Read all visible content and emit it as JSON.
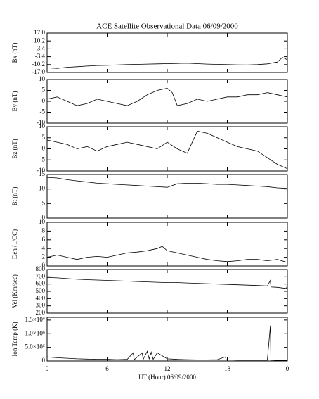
{
  "chart_data": [
    {
      "type": "line",
      "title": "ACE Satellite Observational Data   06/09/2000",
      "ylabel": "Bx (nT)",
      "x": [
        0,
        1,
        2,
        3,
        4,
        5,
        6,
        7,
        8,
        9,
        10,
        11,
        12,
        13,
        14,
        15,
        16,
        17,
        18,
        19,
        20,
        21,
        22,
        23,
        23.5,
        24
      ],
      "values": [
        -13,
        -13.5,
        -12.5,
        -12,
        -11.5,
        -11,
        -10.8,
        -10.5,
        -10.2,
        -10,
        -9.8,
        -9.6,
        -9.4,
        -9.2,
        -9,
        -9.4,
        -9.8,
        -10,
        -10.2,
        -10.4,
        -10.5,
        -10.2,
        -9.6,
        -8,
        -4,
        -6
      ],
      "xlim": [
        0,
        24
      ],
      "ylim": [
        -17,
        17
      ],
      "yticks": [
        {
          "value": -17,
          "label": "-17.0"
        },
        -10.2,
        -3.4,
        3.4,
        10.2,
        {
          "value": 17,
          "label": "17.0"
        }
      ]
    },
    {
      "type": "line",
      "ylabel": "By (nT)",
      "x": [
        0,
        1,
        2,
        3,
        4,
        5,
        6,
        7,
        8,
        9,
        10,
        11,
        12,
        12.5,
        13,
        14,
        15,
        16,
        17,
        18,
        19,
        20,
        21,
        22,
        23,
        24
      ],
      "values": [
        1,
        2,
        0,
        -2,
        -1,
        1,
        0,
        -1,
        -2,
        0,
        3,
        5,
        6,
        4,
        -2,
        -1,
        1,
        0,
        1,
        2,
        2,
        3,
        3,
        4,
        3,
        2
      ],
      "xlim": [
        0,
        24
      ],
      "ylim": [
        -10,
        10
      ],
      "yticks": [
        -10,
        -5,
        0,
        5,
        10
      ]
    },
    {
      "type": "line",
      "ylabel": "Bz (nT)",
      "x": [
        0,
        1,
        2,
        3,
        4,
        5,
        6,
        7,
        8,
        9,
        10,
        11,
        12,
        13,
        14,
        14.5,
        15,
        16,
        17,
        18,
        19,
        20,
        21,
        22,
        23,
        24
      ],
      "values": [
        4,
        3,
        2,
        0,
        1,
        -1,
        1,
        2,
        3,
        2,
        1,
        0,
        3,
        0,
        -2,
        3,
        8,
        7,
        5,
        3,
        1,
        0,
        -1,
        -4,
        -7,
        -9
      ],
      "xlim": [
        0,
        24
      ],
      "ylim": [
        -10,
        10
      ],
      "yticks": [
        -10,
        -5,
        0,
        5,
        10
      ]
    },
    {
      "type": "line",
      "ylabel": "Bt (nT)",
      "x": [
        0,
        1,
        2,
        3,
        4,
        5,
        6,
        7,
        8,
        9,
        10,
        11,
        12,
        13,
        14,
        15,
        16,
        17,
        18,
        19,
        20,
        21,
        22,
        23,
        24
      ],
      "values": [
        14,
        13.8,
        13.2,
        12.8,
        12.4,
        12,
        11.8,
        11.6,
        11.4,
        11.2,
        11,
        10.8,
        10.6,
        11.8,
        12,
        12,
        11.8,
        11.6,
        11.6,
        11.4,
        11.2,
        11,
        10.8,
        10.4,
        10.2
      ],
      "xlim": [
        0,
        24
      ],
      "ylim": [
        0,
        15
      ],
      "yticks": [
        0,
        5,
        10,
        15
      ]
    },
    {
      "type": "line",
      "ylabel": "Den (1/CC)",
      "x": [
        0,
        1,
        2,
        3,
        4,
        5,
        6,
        7,
        8,
        9,
        10,
        11,
        11.5,
        12,
        13,
        14,
        15,
        16,
        17,
        18,
        19,
        20,
        21,
        22,
        23,
        24
      ],
      "values": [
        2,
        2.5,
        2,
        1.5,
        2,
        2.2,
        2,
        2.5,
        3,
        3.2,
        3.5,
        4,
        4.5,
        3.5,
        3,
        2.5,
        2,
        1.5,
        1.2,
        1,
        1.2,
        1.5,
        1.5,
        1.2,
        1.5,
        0.8
      ],
      "xlim": [
        0,
        24
      ],
      "ylim": [
        0,
        10
      ],
      "yticks": [
        0,
        2,
        4,
        6,
        8,
        10
      ]
    },
    {
      "type": "line",
      "ylabel": "Vel (Km/sec)",
      "x": [
        0,
        1,
        2,
        3,
        4,
        5,
        6,
        7,
        8,
        9,
        10,
        11,
        12,
        13,
        14,
        15,
        16,
        17,
        18,
        19,
        20,
        21,
        22,
        22.3,
        22.35,
        23,
        23.9,
        24
      ],
      "values": [
        690,
        685,
        675,
        665,
        660,
        655,
        650,
        645,
        640,
        635,
        630,
        625,
        620,
        620,
        615,
        610,
        605,
        600,
        595,
        590,
        585,
        580,
        575,
        650,
        560,
        555,
        540,
        590
      ],
      "xlim": [
        0,
        24
      ],
      "ylim": [
        200,
        800
      ],
      "yticks": [
        200,
        300,
        400,
        500,
        600,
        700,
        800
      ]
    },
    {
      "type": "line",
      "ylabel": "Ion Temp (K)",
      "xlabel": "UT (Hour)  06/09/2000",
      "x": [
        0,
        1,
        2,
        3,
        4,
        5,
        6,
        7,
        8,
        8.6,
        8.7,
        9.5,
        9.6,
        10,
        10.2,
        10.4,
        10.6,
        11,
        12,
        13,
        14,
        15,
        16,
        17,
        17.8,
        17.9,
        18,
        19,
        20,
        21,
        22,
        22.3,
        22.35,
        22.5,
        23,
        24
      ],
      "values": [
        150000,
        120000,
        100000,
        80000,
        70000,
        60000,
        60000,
        50000,
        60000,
        300000,
        50000,
        300000,
        60000,
        350000,
        80000,
        320000,
        60000,
        300000,
        80000,
        60000,
        50000,
        40000,
        40000,
        50000,
        150000,
        40000,
        40000,
        30000,
        30000,
        30000,
        30000,
        1300000,
        30000,
        30000,
        20000,
        20000
      ],
      "xlim": [
        0,
        24
      ],
      "ylim": [
        0,
        1600000
      ],
      "yticks": [
        0,
        {
          "value": 500000,
          "label": "5.0×10⁵"
        },
        {
          "value": 1000000,
          "label": "1.0×10⁶"
        },
        {
          "value": 1500000,
          "label": "1.5×10⁶"
        }
      ],
      "xticks": [
        0,
        6,
        12,
        18,
        {
          "value": 24,
          "label": "0"
        }
      ]
    }
  ]
}
